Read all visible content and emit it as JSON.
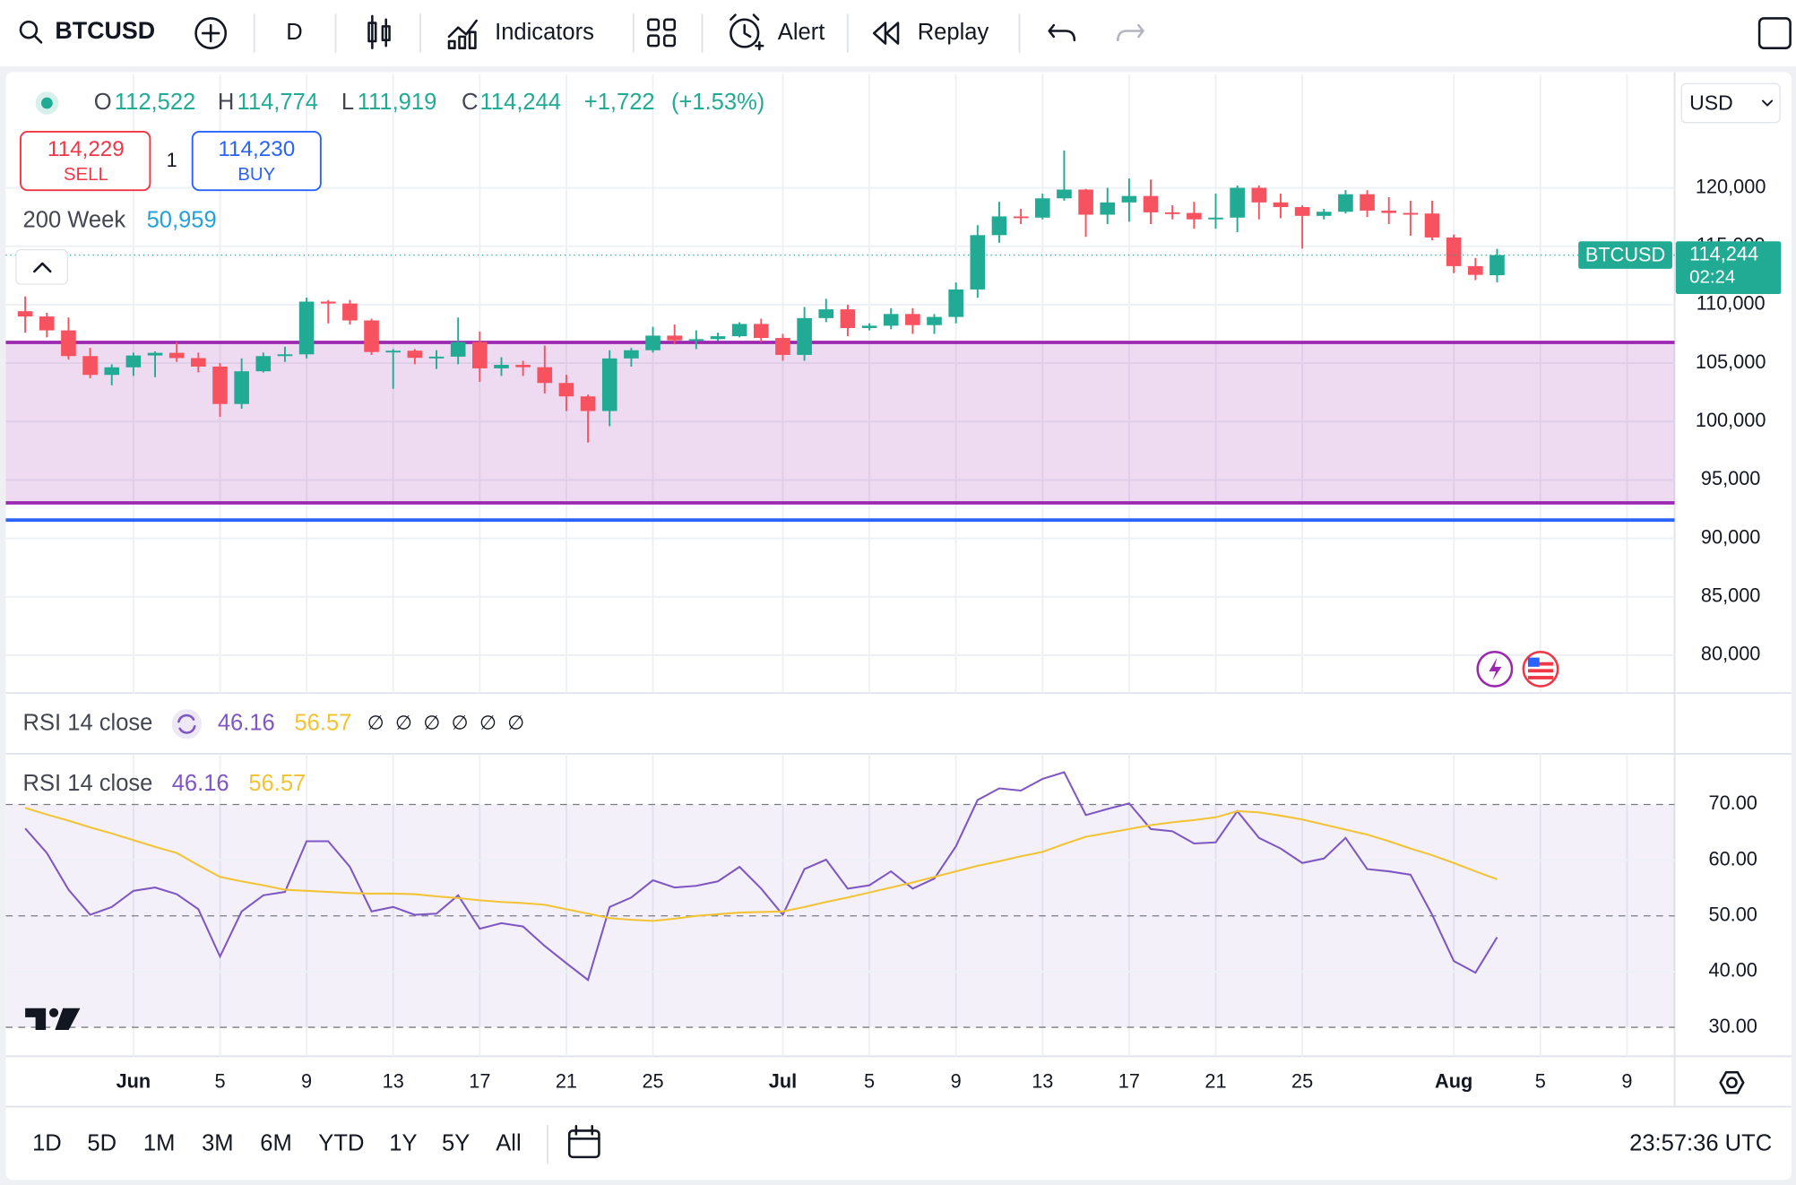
{
  "toolbar": {
    "symbol": "BTCUSD",
    "interval": "D",
    "indicators": "Indicators",
    "alert": "Alert",
    "replay": "Replay"
  },
  "trade": {
    "sell_price": "114,229",
    "sell": "SELL",
    "quantity": "1",
    "buy_price": "114,230",
    "buy": "BUY"
  },
  "ma_legend": {
    "name": "200 Week",
    "value": "50,959"
  },
  "rsi_row": {
    "name": "RSI 14 close",
    "empty": [
      "∅",
      "∅",
      "∅",
      "∅",
      "∅",
      "∅"
    ]
  },
  "bottom": {
    "ranges": [
      "1D",
      "5D",
      "1M",
      "3M",
      "6M",
      "YTD",
      "1Y",
      "5Y",
      "All"
    ],
    "clock": "23:57:36 UTC"
  },
  "chart_data": [
    {
      "type": "candlestick",
      "currency": "USD",
      "legend": {
        "o": "O",
        "open": "112,522",
        "h": "H",
        "high": "114,774",
        "l": "L",
        "low": "111,919",
        "c": "C",
        "close": "114,244",
        "change": "+1,722",
        "change_pct": "(+1.53%)"
      },
      "open": [
        109440,
        108990,
        107800,
        105600,
        103990,
        104640,
        105650,
        105880,
        105430,
        104700,
        101500,
        104300,
        105600,
        105750,
        110260,
        110100,
        108650,
        105950,
        106060,
        105450,
        105550,
        106800,
        104550,
        104850,
        104650,
        103300,
        102150,
        100900,
        105400,
        106100,
        107350,
        106950,
        107050,
        107300,
        108350,
        107150,
        105700,
        108850,
        109600,
        108000,
        108200,
        109200,
        108250,
        108950,
        111300,
        115950,
        117550,
        117450,
        119100,
        119850,
        117700,
        118750,
        119300,
        117900,
        117850,
        117300,
        117450,
        120000,
        118750,
        118350,
        117600,
        117950,
        119450,
        118050,
        117850,
        117800,
        115750,
        113300,
        112522
      ],
      "high": [
        110700,
        109300,
        108900,
        106300,
        104900,
        105900,
        106000,
        106800,
        105900,
        105000,
        105400,
        105900,
        106400,
        110600,
        110400,
        110400,
        108800,
        106200,
        106200,
        106100,
        108900,
        107700,
        105500,
        105200,
        106500,
        104000,
        102300,
        106100,
        106300,
        108100,
        108300,
        107800,
        107600,
        108500,
        108800,
        107500,
        109800,
        110500,
        110000,
        108400,
        109700,
        109700,
        109200,
        111900,
        116800,
        118800,
        118200,
        119500,
        123200,
        119900,
        120000,
        120800,
        120700,
        118500,
        118800,
        119500,
        120200,
        120200,
        119500,
        118500,
        118200,
        119800,
        119800,
        119200,
        118900,
        118900,
        116000,
        114000,
        114774
      ],
      "low": [
        107600,
        107200,
        105300,
        103700,
        103100,
        103900,
        103800,
        105100,
        104200,
        100400,
        101100,
        104200,
        105100,
        105400,
        108400,
        108300,
        105700,
        102800,
        104900,
        104500,
        104900,
        103400,
        103900,
        103900,
        102400,
        100900,
        98200,
        99600,
        104700,
        105900,
        106600,
        106200,
        106900,
        107200,
        106800,
        105200,
        105200,
        108500,
        107300,
        107800,
        107900,
        107500,
        107500,
        108400,
        110600,
        115300,
        116900,
        117300,
        118900,
        115800,
        116900,
        117100,
        116900,
        117300,
        116500,
        116500,
        116200,
        117300,
        117400,
        114800,
        117300,
        117800,
        117500,
        116900,
        115900,
        115500,
        112700,
        112100,
        111919
      ],
      "close": [
        108990,
        107800,
        105600,
        103990,
        104640,
        105650,
        105880,
        105430,
        104700,
        101500,
        104300,
        105600,
        105750,
        110260,
        110100,
        108650,
        105950,
        106060,
        105450,
        105550,
        106800,
        104550,
        104850,
        104650,
        103300,
        102150,
        100900,
        105400,
        106100,
        107350,
        106950,
        107050,
        107300,
        108350,
        107150,
        105700,
        108850,
        109600,
        108000,
        108200,
        109200,
        108250,
        108950,
        111300,
        115950,
        117550,
        117450,
        119100,
        119850,
        117700,
        118750,
        119300,
        117900,
        117850,
        117300,
        117450,
        120000,
        118750,
        118350,
        117600,
        117950,
        119450,
        118050,
        117850,
        117800,
        115750,
        113300,
        112550,
        114244
      ],
      "up_color": "#22ab94",
      "down_color": "#f7525f",
      "last_label": "114,244",
      "last_symbol": "BTCUSD",
      "countdown": "02:24",
      "zone": {
        "low": 93040,
        "high": 106770,
        "color": "#9c27b0"
      },
      "level": {
        "value": 91570,
        "color": "#2962ff"
      },
      "xlim": [
        -0.9,
        76.2
      ],
      "xticks": [
        {
          "value": 5,
          "label": "Jun"
        },
        {
          "value": 9,
          "label": "5"
        },
        {
          "value": 13,
          "label": "9"
        },
        {
          "value": 17,
          "label": "13"
        },
        {
          "value": 21,
          "label": "17"
        },
        {
          "value": 25,
          "label": "21"
        },
        {
          "value": 29,
          "label": "25"
        },
        {
          "value": 35,
          "label": "Jul"
        },
        {
          "value": 39,
          "label": "5"
        },
        {
          "value": 43,
          "label": "9"
        },
        {
          "value": 47,
          "label": "13"
        },
        {
          "value": 51,
          "label": "17"
        },
        {
          "value": 55,
          "label": "21"
        },
        {
          "value": 59,
          "label": "25"
        },
        {
          "value": 66,
          "label": "Aug"
        },
        {
          "value": 70,
          "label": "5"
        },
        {
          "value": 74,
          "label": "9"
        }
      ],
      "ylim": [
        76760,
        129700
      ],
      "yticks": [
        {
          "value": 80000,
          "label": "80,000"
        },
        {
          "value": 85000,
          "label": "85,000"
        },
        {
          "value": 90000,
          "label": "90,000"
        },
        {
          "value": 95000,
          "label": "95,000"
        },
        {
          "value": 100000,
          "label": "100,000"
        },
        {
          "value": 105000,
          "label": "105,000"
        },
        {
          "value": 110000,
          "label": "110,000"
        },
        {
          "value": 115000,
          "label": "115,000"
        },
        {
          "value": 120000,
          "label": "120,000"
        }
      ],
      "grid": true
    },
    {
      "type": "line",
      "title": "RSI 14 close",
      "series": [
        {
          "color": "#7e57c2",
          "value_label": "46.16",
          "values": [
            65.7,
            61.3,
            54.7,
            50.2,
            51.6,
            54.5,
            55.1,
            53.9,
            51.2,
            42.7,
            50.8,
            53.7,
            54.3,
            63.4,
            63.4,
            58.8,
            50.8,
            51.6,
            50.2,
            50.4,
            53.7,
            47.7,
            48.7,
            48.1,
            44.6,
            41.5,
            38.5,
            51.6,
            53.3,
            56.4,
            55.1,
            55.4,
            56.2,
            58.8,
            54.9,
            50.2,
            58.4,
            60.1,
            54.9,
            55.5,
            58.0,
            54.9,
            56.7,
            62.5,
            70.8,
            72.9,
            72.5,
            74.6,
            75.8,
            68.1,
            69.2,
            70.2,
            65.6,
            65.2,
            63.0,
            63.2,
            68.8,
            64.0,
            62.1,
            59.5,
            60.3,
            64.0,
            58.4,
            58.0,
            57.4,
            50.2,
            41.9,
            39.8,
            46.16
          ]
        },
        {
          "color": "#f2c335",
          "value_label": "56.57",
          "values": [
            69.4,
            68.2,
            67.1,
            65.9,
            64.8,
            63.6,
            62.4,
            61.3,
            59.1,
            57.0,
            56.2,
            55.5,
            54.7,
            54.5,
            54.3,
            54.1,
            54.0,
            54.0,
            53.9,
            53.5,
            53.2,
            52.8,
            52.5,
            52.3,
            52.0,
            51.2,
            50.4,
            49.6,
            49.3,
            49.1,
            49.5,
            50.0,
            50.3,
            50.6,
            50.7,
            50.8,
            51.6,
            52.5,
            53.3,
            54.2,
            55.1,
            56.0,
            57.0,
            58.0,
            59.0,
            59.8,
            60.7,
            61.5,
            62.9,
            64.2,
            64.9,
            65.6,
            66.3,
            66.8,
            67.2,
            67.7,
            68.8,
            68.6,
            68.0,
            67.3,
            66.4,
            65.5,
            64.6,
            63.4,
            62.1,
            60.9,
            59.5,
            58.0,
            56.57
          ]
        }
      ],
      "band_color": "#7e57c2",
      "ylim": [
        24.8,
        79.1
      ],
      "yticks": [
        {
          "value": 30,
          "label": "30.00",
          "dashed": true
        },
        {
          "value": 40,
          "label": "40.00"
        },
        {
          "value": 50,
          "label": "50.00",
          "dashed": true
        },
        {
          "value": 60,
          "label": "60.00"
        },
        {
          "value": 70,
          "label": "70.00",
          "dashed": true
        }
      ]
    }
  ]
}
